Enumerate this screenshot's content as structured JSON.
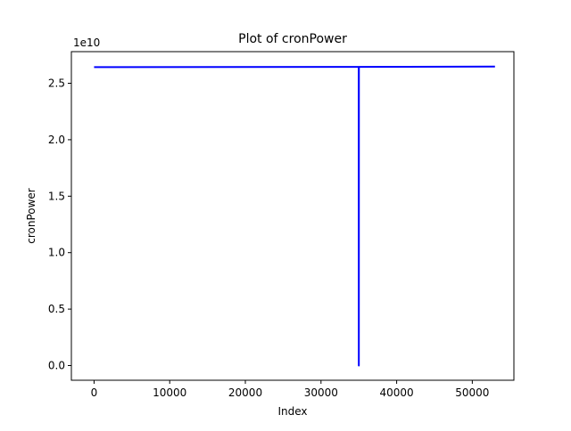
{
  "chart_data": {
    "type": "line",
    "title": "Plot of cronPower",
    "xlabel": "Index",
    "ylabel": "cronPower",
    "y_offset_label": "1e10",
    "xlim": [
      -3000,
      55500
    ],
    "ylim": [
      -0.13,
      2.78
    ],
    "x_ticks": [
      0,
      10000,
      20000,
      30000,
      40000,
      50000
    ],
    "x_tick_labels": [
      "0",
      "10000",
      "20000",
      "30000",
      "40000",
      "50000"
    ],
    "y_ticks": [
      0.0,
      0.5,
      1.0,
      1.5,
      2.0,
      2.5
    ],
    "y_tick_labels": [
      "0.0",
      "0.5",
      "1.0",
      "1.5",
      "2.0",
      "2.5"
    ],
    "y_unit_multiplier": 10000000000,
    "grid": false,
    "series": [
      {
        "color": "#0000ff",
        "x": [
          0,
          34990,
          35000,
          35010,
          53000
        ],
        "y": [
          2.643,
          2.645,
          0.0,
          2.645,
          2.648
        ]
      }
    ]
  }
}
